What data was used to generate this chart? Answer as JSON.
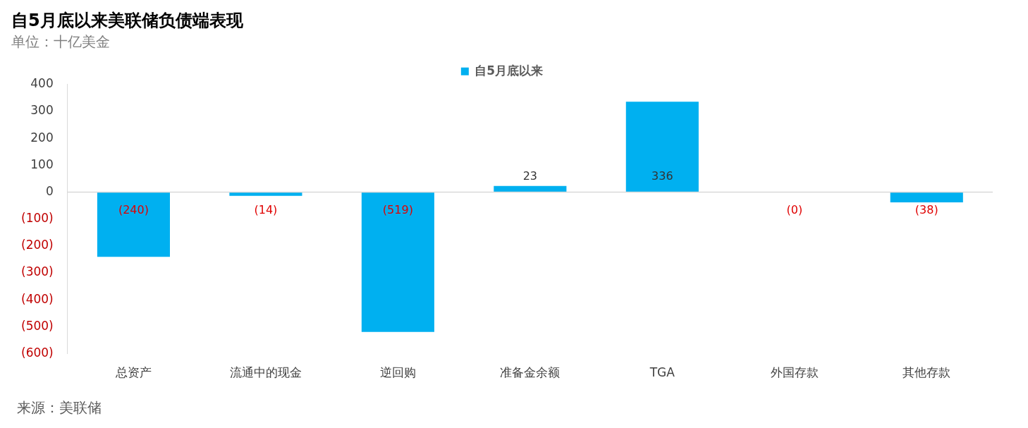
{
  "chart_data": {
    "type": "bar",
    "title": "自5月底以来美联储负债端表现",
    "subtitle": "单位：十亿美金",
    "categories": [
      "总资产",
      "流通中的现金",
      "逆回购",
      "准备金余额",
      "TGA",
      "外国存款",
      "其他存款"
    ],
    "series": [
      {
        "name": "自5月底以来",
        "color": "#00b0f0",
        "values": [
          -240,
          -14,
          -519,
          23,
          336,
          0,
          -38
        ],
        "value_labels": [
          "(240)",
          "(14)",
          "(519)",
          "23",
          "336",
          "(0)",
          "(38)"
        ]
      }
    ],
    "ylim": [
      -600,
      400
    ],
    "yticks": [
      {
        "value": -600,
        "label": "(600)"
      },
      {
        "value": -500,
        "label": "(500)"
      },
      {
        "value": -400,
        "label": "(400)"
      },
      {
        "value": -300,
        "label": "(300)"
      },
      {
        "value": -200,
        "label": "(200)"
      },
      {
        "value": -100,
        "label": "(100)"
      },
      0,
      100,
      200,
      300,
      400
    ],
    "grid": false,
    "legend": "top",
    "ref_lines": [
      {
        "axis": "y",
        "value": 0,
        "color": "#d9d9d9"
      }
    ],
    "annotations": [
      "来源：美联储"
    ]
  }
}
